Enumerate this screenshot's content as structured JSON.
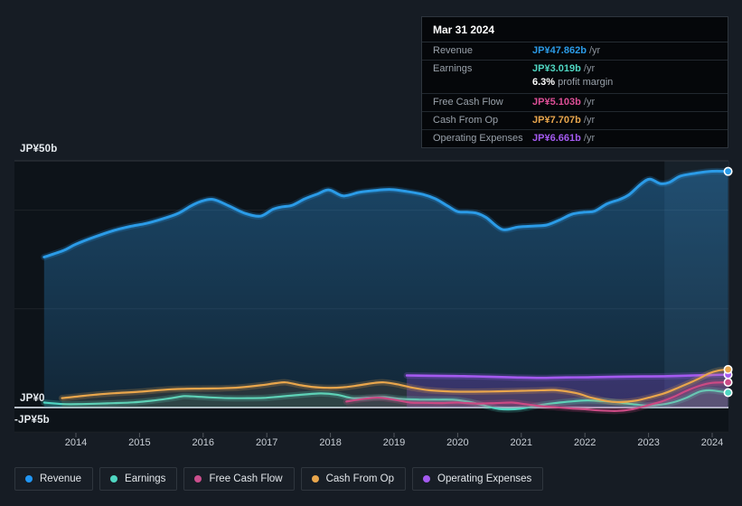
{
  "tooltip": {
    "title": "Mar 31 2024",
    "rows": [
      {
        "label": "Revenue",
        "value": "JP¥47.862b",
        "suffix": " /yr",
        "color": "#2b9be7"
      },
      {
        "label": "Earnings",
        "value": "JP¥3.019b",
        "suffix": " /yr",
        "color": "#4fd6c2",
        "sub_value": "6.3%",
        "sub_text": " profit margin"
      },
      {
        "label": "Free Cash Flow",
        "value": "JP¥5.103b",
        "suffix": " /yr",
        "color": "#de4f97"
      },
      {
        "label": "Cash From Op",
        "value": "JP¥7.707b",
        "suffix": " /yr",
        "color": "#e9a64c"
      },
      {
        "label": "Operating Expenses",
        "value": "JP¥6.661b",
        "suffix": " /yr",
        "color": "#a45af0"
      }
    ]
  },
  "legend": {
    "items": [
      {
        "label": "Revenue",
        "color": "#2196f3"
      },
      {
        "label": "Earnings",
        "color": "#4fd6c2"
      },
      {
        "label": "Free Cash Flow",
        "color": "#cb4f8d"
      },
      {
        "label": "Cash From Op",
        "color": "#e9a64c"
      },
      {
        "label": "Operating Expenses",
        "color": "#a45af0"
      }
    ]
  },
  "axis": {
    "y_labels": [
      {
        "text": "JP¥50b",
        "value": 50
      },
      {
        "text": "JP¥0",
        "value": 0
      },
      {
        "text": "-JP¥5b",
        "value": -5
      }
    ],
    "x_years": [
      2014,
      2015,
      2016,
      2017,
      2018,
      2019,
      2020,
      2021,
      2022,
      2023,
      2024
    ]
  },
  "chart_data": {
    "type": "area",
    "title": "Past earnings and revenue history (JP¥ billions per year)",
    "x_range": [
      2013.5,
      2024.3
    ],
    "y_gridlines": [
      50,
      40,
      20,
      0,
      -5
    ],
    "highlight_band_years": [
      2023.25,
      2024.27
    ],
    "hover_date": "Mar 31 2024",
    "series": [
      {
        "name": "Revenue",
        "color": "#2b9be7",
        "points": [
          [
            2013.5,
            30.5
          ],
          [
            2013.8,
            31.8
          ],
          [
            2014.0,
            33.1
          ],
          [
            2014.3,
            34.6
          ],
          [
            2014.6,
            35.9
          ],
          [
            2014.85,
            36.7
          ],
          [
            2015.1,
            37.3
          ],
          [
            2015.35,
            38.2
          ],
          [
            2015.6,
            39.3
          ],
          [
            2015.8,
            40.8
          ],
          [
            2015.95,
            41.7
          ],
          [
            2016.15,
            42.2
          ],
          [
            2016.4,
            40.9
          ],
          [
            2016.65,
            39.4
          ],
          [
            2016.9,
            38.8
          ],
          [
            2017.1,
            40.2
          ],
          [
            2017.25,
            40.7
          ],
          [
            2017.4,
            41.0
          ],
          [
            2017.6,
            42.3
          ],
          [
            2017.8,
            43.3
          ],
          [
            2017.98,
            44.1
          ],
          [
            2018.2,
            42.9
          ],
          [
            2018.45,
            43.6
          ],
          [
            2018.7,
            44.0
          ],
          [
            2018.95,
            44.2
          ],
          [
            2019.2,
            43.8
          ],
          [
            2019.45,
            43.2
          ],
          [
            2019.65,
            42.3
          ],
          [
            2019.85,
            40.8
          ],
          [
            2020.0,
            39.7
          ],
          [
            2020.15,
            39.6
          ],
          [
            2020.3,
            39.4
          ],
          [
            2020.45,
            38.5
          ],
          [
            2020.7,
            36.1
          ],
          [
            2020.95,
            36.6
          ],
          [
            2021.2,
            36.8
          ],
          [
            2021.4,
            37.0
          ],
          [
            2021.6,
            38.0
          ],
          [
            2021.8,
            39.2
          ],
          [
            2022.0,
            39.6
          ],
          [
            2022.15,
            39.8
          ],
          [
            2022.35,
            41.3
          ],
          [
            2022.55,
            42.2
          ],
          [
            2022.7,
            43.2
          ],
          [
            2022.88,
            45.3
          ],
          [
            2023.02,
            46.3
          ],
          [
            2023.18,
            45.4
          ],
          [
            2023.32,
            45.6
          ],
          [
            2023.5,
            46.9
          ],
          [
            2023.75,
            47.5
          ],
          [
            2024.0,
            47.9
          ],
          [
            2024.25,
            47.862
          ]
        ]
      },
      {
        "name": "Earnings",
        "color": "#4fd6c2",
        "points": [
          [
            2013.5,
            1.0
          ],
          [
            2013.8,
            0.7
          ],
          [
            2014.1,
            0.7
          ],
          [
            2014.5,
            0.85
          ],
          [
            2014.9,
            1.05
          ],
          [
            2015.2,
            1.4
          ],
          [
            2015.5,
            1.9
          ],
          [
            2015.7,
            2.3
          ],
          [
            2015.9,
            2.2
          ],
          [
            2016.1,
            2.05
          ],
          [
            2016.4,
            1.9
          ],
          [
            2016.7,
            1.9
          ],
          [
            2016.95,
            1.95
          ],
          [
            2017.2,
            2.2
          ],
          [
            2017.5,
            2.55
          ],
          [
            2017.85,
            2.85
          ],
          [
            2018.1,
            2.6
          ],
          [
            2018.35,
            1.9
          ],
          [
            2018.6,
            2.0
          ],
          [
            2018.85,
            2.1
          ],
          [
            2019.1,
            1.75
          ],
          [
            2019.4,
            1.6
          ],
          [
            2019.7,
            1.6
          ],
          [
            2019.95,
            1.55
          ],
          [
            2020.2,
            1.1
          ],
          [
            2020.45,
            0.3
          ],
          [
            2020.65,
            -0.3
          ],
          [
            2020.9,
            -0.35
          ],
          [
            2021.1,
            0.0
          ],
          [
            2021.35,
            0.6
          ],
          [
            2021.6,
            1.0
          ],
          [
            2021.85,
            1.3
          ],
          [
            2022.05,
            1.45
          ],
          [
            2022.3,
            1.3
          ],
          [
            2022.55,
            1.0
          ],
          [
            2022.8,
            0.6
          ],
          [
            2023.0,
            0.4
          ],
          [
            2023.2,
            0.6
          ],
          [
            2023.4,
            1.1
          ],
          [
            2023.6,
            2.0
          ],
          [
            2023.8,
            3.2
          ],
          [
            2023.95,
            3.5
          ],
          [
            2024.1,
            3.3
          ],
          [
            2024.25,
            3.019
          ]
        ]
      },
      {
        "name": "Free Cash Flow",
        "color": "#cb4a84",
        "points": [
          [
            2018.25,
            1.2
          ],
          [
            2018.5,
            1.7
          ],
          [
            2018.75,
            2.0
          ],
          [
            2019.0,
            1.6
          ],
          [
            2019.25,
            1.0
          ],
          [
            2019.5,
            0.95
          ],
          [
            2019.75,
            0.9
          ],
          [
            2020.0,
            1.0
          ],
          [
            2020.3,
            0.8
          ],
          [
            2020.6,
            0.9
          ],
          [
            2020.85,
            1.0
          ],
          [
            2021.05,
            0.7
          ],
          [
            2021.3,
            0.3
          ],
          [
            2021.55,
            0.05
          ],
          [
            2021.8,
            -0.2
          ],
          [
            2022.0,
            -0.35
          ],
          [
            2022.25,
            -0.6
          ],
          [
            2022.5,
            -0.7
          ],
          [
            2022.75,
            -0.35
          ],
          [
            2023.0,
            0.5
          ],
          [
            2023.2,
            1.2
          ],
          [
            2023.4,
            2.2
          ],
          [
            2023.6,
            3.4
          ],
          [
            2023.8,
            4.4
          ],
          [
            2024.0,
            5.0
          ],
          [
            2024.25,
            5.103
          ]
        ]
      },
      {
        "name": "Cash From Op",
        "color": "#e9a64c",
        "points": [
          [
            2013.78,
            1.9
          ],
          [
            2014.0,
            2.2
          ],
          [
            2014.3,
            2.6
          ],
          [
            2014.6,
            2.9
          ],
          [
            2015.0,
            3.2
          ],
          [
            2015.5,
            3.7
          ],
          [
            2016.0,
            3.85
          ],
          [
            2016.3,
            3.9
          ],
          [
            2016.6,
            4.1
          ],
          [
            2016.9,
            4.5
          ],
          [
            2017.15,
            4.95
          ],
          [
            2017.3,
            5.1
          ],
          [
            2017.5,
            4.6
          ],
          [
            2017.7,
            4.2
          ],
          [
            2017.95,
            4.0
          ],
          [
            2018.2,
            4.1
          ],
          [
            2018.45,
            4.5
          ],
          [
            2018.7,
            5.0
          ],
          [
            2018.85,
            5.1
          ],
          [
            2019.05,
            4.7
          ],
          [
            2019.3,
            4.0
          ],
          [
            2019.55,
            3.5
          ],
          [
            2019.8,
            3.3
          ],
          [
            2020.1,
            3.2
          ],
          [
            2020.5,
            3.25
          ],
          [
            2020.9,
            3.35
          ],
          [
            2021.2,
            3.45
          ],
          [
            2021.5,
            3.55
          ],
          [
            2021.7,
            3.3
          ],
          [
            2021.9,
            2.8
          ],
          [
            2022.1,
            2.0
          ],
          [
            2022.35,
            1.3
          ],
          [
            2022.55,
            1.1
          ],
          [
            2022.8,
            1.4
          ],
          [
            2023.0,
            2.0
          ],
          [
            2023.25,
            2.9
          ],
          [
            2023.5,
            4.2
          ],
          [
            2023.75,
            5.6
          ],
          [
            2023.95,
            6.9
          ],
          [
            2024.1,
            7.5
          ],
          [
            2024.25,
            7.707
          ]
        ]
      },
      {
        "name": "Operating Expenses",
        "color": "#a45af0",
        "points": [
          [
            2019.2,
            6.5
          ],
          [
            2019.5,
            6.45
          ],
          [
            2019.8,
            6.4
          ],
          [
            2020.1,
            6.35
          ],
          [
            2020.5,
            6.25
          ],
          [
            2020.9,
            6.1
          ],
          [
            2021.3,
            6.0
          ],
          [
            2021.7,
            6.1
          ],
          [
            2022.1,
            6.15
          ],
          [
            2022.5,
            6.25
          ],
          [
            2022.9,
            6.3
          ],
          [
            2023.3,
            6.35
          ],
          [
            2023.7,
            6.5
          ],
          [
            2024.0,
            6.6
          ],
          [
            2024.25,
            6.661
          ]
        ]
      }
    ]
  }
}
